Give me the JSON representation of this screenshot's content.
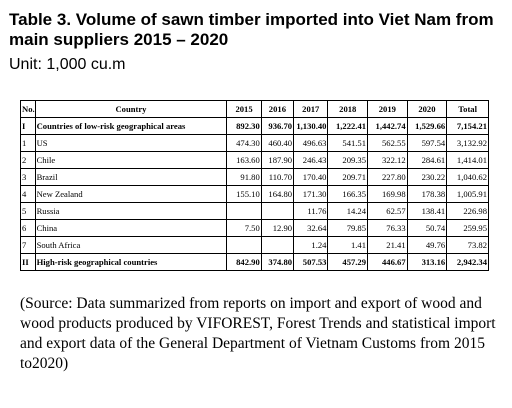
{
  "title": "Table 3. Volume of sawn timber imported into Viet Nam from main suppliers 2015 – 2020",
  "unit": "Unit: 1,000 cu.m",
  "table": {
    "headers": [
      "No.",
      "Country",
      "2015",
      "2016",
      "2017",
      "2018",
      "2019",
      "2020",
      "Total"
    ],
    "rows": [
      {
        "no": "I",
        "country": "Countries of low-risk geographical areas",
        "values": [
          "892.30",
          "936.70",
          "1,130.40",
          "1,222.41",
          "1,442.74",
          "1,529.66",
          "7,154.21"
        ],
        "bold": true
      },
      {
        "no": "1",
        "country": "US",
        "values": [
          "474.30",
          "460.40",
          "496.63",
          "541.51",
          "562.55",
          "597.54",
          "3,132.92"
        ],
        "bold": false
      },
      {
        "no": "2",
        "country": "Chile",
        "values": [
          "163.60",
          "187.90",
          "246.43",
          "209.35",
          "322.12",
          "284.61",
          "1,414.01"
        ],
        "bold": false
      },
      {
        "no": "3",
        "country": "Brazil",
        "values": [
          "91.80",
          "110.70",
          "170.40",
          "209.71",
          "227.80",
          "230.22",
          "1,040.62"
        ],
        "bold": false
      },
      {
        "no": "4",
        "country": "New Zealand",
        "values": [
          "155.10",
          "164.80",
          "171.30",
          "166.35",
          "169.98",
          "178.38",
          "1,005.91"
        ],
        "bold": false
      },
      {
        "no": "5",
        "country": "Russia",
        "values": [
          "",
          "",
          "11.76",
          "14.24",
          "62.57",
          "138.41",
          "226.98"
        ],
        "bold": false
      },
      {
        "no": "6",
        "country": "China",
        "values": [
          "7.50",
          "12.90",
          "32.64",
          "79.85",
          "76.33",
          "50.74",
          "259.95"
        ],
        "bold": false
      },
      {
        "no": "7",
        "country": "South Africa",
        "values": [
          "",
          "",
          "1.24",
          "1.41",
          "21.41",
          "49.76",
          "73.82"
        ],
        "bold": false
      },
      {
        "no": "II",
        "country": "High-risk geographical countries",
        "values": [
          "842.90",
          "374.80",
          "507.53",
          "457.29",
          "446.67",
          "313.16",
          "2,942.34"
        ],
        "bold": true
      }
    ]
  },
  "source": "(Source: Data summarized from reports on import and export of wood and wood products produced by VIFOREST, Forest Trends and statistical import and export data of the General Department of Vietnam Customs from 2015 to2020)"
}
